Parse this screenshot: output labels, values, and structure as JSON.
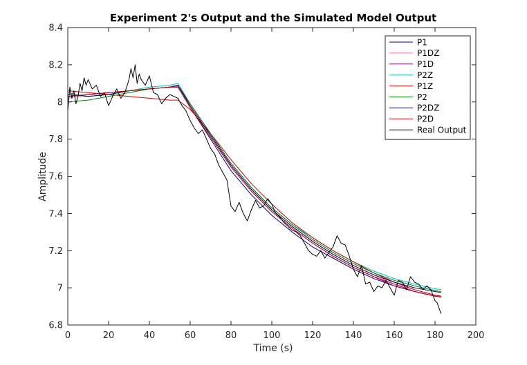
{
  "chart_data": {
    "type": "line",
    "title": "Experiment 2's Output and the Simulated Model Output",
    "xlabel": "Time (s)",
    "ylabel": "Amplitude",
    "xlim": [
      0,
      200
    ],
    "ylim": [
      6.8,
      8.4
    ],
    "xticks": [
      "0",
      "20",
      "40",
      "60",
      "80",
      "100",
      "120",
      "140",
      "160",
      "180",
      "200"
    ],
    "yticks": [
      "6.8",
      "7",
      "7.2",
      "7.4",
      "7.6",
      "7.8",
      "8",
      "8.2",
      "8.4"
    ],
    "grid": false,
    "legend_position": "top-right",
    "series": [
      {
        "name": "P1",
        "color": "#000080",
        "x": [
          0,
          10,
          20,
          30,
          40,
          50,
          54,
          60,
          70,
          80,
          90,
          100,
          110,
          120,
          130,
          140,
          150,
          160,
          170,
          180,
          183
        ],
        "y": [
          8.03,
          8.04,
          8.05,
          8.06,
          8.07,
          8.08,
          8.085,
          7.97,
          7.8,
          7.63,
          7.5,
          7.39,
          7.3,
          7.22,
          7.16,
          7.1,
          7.05,
          7.01,
          6.98,
          6.955,
          6.95
        ]
      },
      {
        "name": "P1DZ",
        "color": "#ff66cc",
        "x": [
          0,
          10,
          20,
          30,
          40,
          50,
          54,
          60,
          70,
          80,
          90,
          100,
          110,
          120,
          130,
          140,
          150,
          160,
          170,
          180,
          183
        ],
        "y": [
          8.02,
          8.04,
          8.05,
          8.06,
          8.07,
          8.08,
          8.085,
          7.98,
          7.82,
          7.66,
          7.53,
          7.42,
          7.33,
          7.25,
          7.18,
          7.12,
          7.07,
          7.02,
          6.99,
          6.96,
          6.955
        ]
      },
      {
        "name": "P1D",
        "color": "#800080",
        "x": [
          0,
          10,
          20,
          30,
          40,
          50,
          54,
          60,
          70,
          80,
          90,
          100,
          110,
          120,
          130,
          140,
          150,
          160,
          170,
          180,
          183
        ],
        "y": [
          8.03,
          8.04,
          8.05,
          8.06,
          8.07,
          8.08,
          8.08,
          7.97,
          7.81,
          7.65,
          7.52,
          7.41,
          7.32,
          7.24,
          7.17,
          7.11,
          7.06,
          7.01,
          6.98,
          6.955,
          6.95
        ]
      },
      {
        "name": "P2Z",
        "color": "#00bfbf",
        "x": [
          0,
          10,
          20,
          30,
          40,
          50,
          54,
          60,
          70,
          80,
          90,
          100,
          110,
          120,
          130,
          140,
          150,
          160,
          170,
          180,
          183
        ],
        "y": [
          8.05,
          8.03,
          8.04,
          8.06,
          8.08,
          8.09,
          8.1,
          7.99,
          7.83,
          7.67,
          7.54,
          7.43,
          7.34,
          7.27,
          7.2,
          7.14,
          7.09,
          7.05,
          7.02,
          6.995,
          6.99
        ]
      },
      {
        "name": "P1Z",
        "color": "#cc0000",
        "x": [
          0,
          10,
          20,
          30,
          40,
          50,
          54,
          60,
          70,
          80,
          90,
          100,
          110,
          120,
          130,
          140,
          150,
          160,
          170,
          180,
          183
        ],
        "y": [
          8.06,
          8.05,
          8.04,
          8.03,
          8.02,
          8.01,
          8.01,
          7.96,
          7.83,
          7.69,
          7.56,
          7.45,
          7.35,
          7.27,
          7.2,
          7.14,
          7.08,
          7.03,
          6.99,
          6.96,
          6.955
        ]
      },
      {
        "name": "P2",
        "color": "#008000",
        "x": [
          0,
          10,
          20,
          30,
          40,
          50,
          54,
          60,
          70,
          80,
          90,
          100,
          110,
          120,
          130,
          140,
          150,
          160,
          170,
          180,
          183
        ],
        "y": [
          8.0,
          8.01,
          8.03,
          8.05,
          8.07,
          8.08,
          8.09,
          7.99,
          7.83,
          7.67,
          7.54,
          7.43,
          7.34,
          7.26,
          7.19,
          7.13,
          7.08,
          7.04,
          7.01,
          6.985,
          6.98
        ]
      },
      {
        "name": "P2DZ",
        "color": "#000066",
        "x": [
          0,
          10,
          20,
          30,
          40,
          50,
          54,
          60,
          70,
          80,
          90,
          100,
          110,
          120,
          130,
          140,
          150,
          160,
          170,
          180,
          183
        ],
        "y": [
          8.04,
          8.03,
          8.04,
          8.06,
          8.07,
          8.08,
          8.09,
          7.98,
          7.82,
          7.66,
          7.53,
          7.42,
          7.33,
          7.25,
          7.18,
          7.12,
          7.07,
          7.03,
          7.0,
          6.98,
          6.975
        ]
      },
      {
        "name": "P2D",
        "color": "#cc0000",
        "x": [
          0,
          10,
          20,
          30,
          40,
          50,
          54,
          60,
          70,
          80,
          90,
          100,
          110,
          120,
          130,
          140,
          150,
          160,
          170,
          180,
          183
        ],
        "y": [
          8.03,
          8.04,
          8.05,
          8.06,
          8.07,
          8.08,
          8.08,
          7.97,
          7.81,
          7.65,
          7.52,
          7.41,
          7.32,
          7.24,
          7.17,
          7.11,
          7.06,
          7.02,
          6.98,
          6.955,
          6.95
        ]
      },
      {
        "name": "Real Output",
        "color": "#000000",
        "x": [
          0,
          1,
          2,
          3,
          4,
          5,
          6,
          7,
          8,
          9,
          10,
          12,
          14,
          16,
          18,
          20,
          22,
          24,
          26,
          28,
          30,
          31,
          32,
          33,
          34,
          35,
          36,
          38,
          40,
          42,
          44,
          46,
          48,
          50,
          52,
          54,
          56,
          58,
          60,
          62,
          64,
          66,
          68,
          70,
          72,
          74,
          76,
          78,
          80,
          82,
          84,
          86,
          88,
          90,
          92,
          94,
          96,
          98,
          100,
          102,
          104,
          106,
          108,
          110,
          112,
          114,
          116,
          118,
          120,
          122,
          124,
          126,
          128,
          130,
          132,
          134,
          136,
          138,
          140,
          142,
          144,
          146,
          148,
          150,
          152,
          154,
          156,
          158,
          160,
          162,
          164,
          166,
          168,
          170,
          172,
          174,
          176,
          178,
          180,
          181,
          182,
          183
        ],
        "y": [
          7.95,
          8.08,
          8.02,
          8.06,
          7.99,
          8.03,
          8.1,
          8.06,
          8.13,
          8.09,
          8.12,
          8.07,
          8.09,
          8.03,
          8.05,
          7.98,
          8.03,
          8.07,
          8.02,
          8.05,
          8.12,
          8.18,
          8.13,
          8.2,
          8.1,
          8.15,
          8.12,
          8.09,
          8.14,
          8.05,
          8.04,
          7.99,
          8.02,
          8.04,
          8.03,
          8.02,
          7.98,
          7.95,
          7.9,
          7.86,
          7.83,
          7.85,
          7.8,
          7.75,
          7.72,
          7.66,
          7.62,
          7.58,
          7.44,
          7.41,
          7.46,
          7.4,
          7.36,
          7.42,
          7.47,
          7.43,
          7.44,
          7.48,
          7.45,
          7.4,
          7.38,
          7.35,
          7.33,
          7.31,
          7.3,
          7.28,
          7.24,
          7.2,
          7.18,
          7.17,
          7.2,
          7.16,
          7.19,
          7.22,
          7.28,
          7.24,
          7.23,
          7.17,
          7.1,
          7.06,
          7.12,
          7.02,
          7.03,
          6.98,
          7.01,
          7.0,
          7.04,
          7.0,
          6.96,
          7.04,
          7.03,
          6.99,
          7.06,
          7.03,
          7.02,
          6.99,
          7.01,
          6.99,
          6.93,
          6.92,
          6.89,
          6.86
        ]
      }
    ]
  }
}
